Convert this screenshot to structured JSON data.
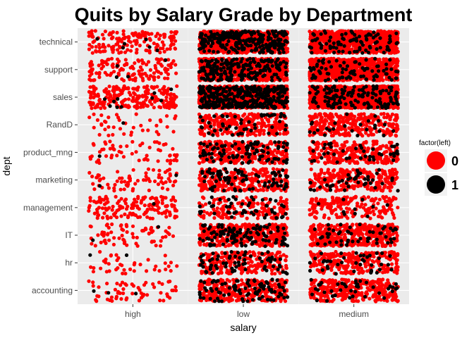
{
  "chart_data": {
    "type": "scatter",
    "subtype": "jitter",
    "title": "Quits by Salary Grade by Department",
    "xlabel": "salary",
    "ylabel": "dept",
    "x_categories": [
      "high",
      "low",
      "medium"
    ],
    "y_categories": [
      "accounting",
      "hr",
      "IT",
      "management",
      "marketing",
      "product_mng",
      "RandD",
      "sales",
      "support",
      "technical"
    ],
    "legend": {
      "title": "factor(left)",
      "position": "right",
      "entries": [
        {
          "label": "0",
          "color": "#ff0000"
        },
        {
          "label": "1",
          "color": "#000000"
        }
      ]
    },
    "series": [
      {
        "name": "0",
        "color": "#ff0000",
        "counts": {
          "high": {
            "accounting": 60,
            "hr": 40,
            "IT": 70,
            "management": 150,
            "marketing": 70,
            "product_mng": 60,
            "RandD": 40,
            "sales": 230,
            "support": 130,
            "technical": 150
          },
          "low": {
            "accounting": 320,
            "hr": 240,
            "IT": 400,
            "management": 160,
            "marketing": 280,
            "product_mng": 320,
            "RandD": 300,
            "sales": 1150,
            "support": 700,
            "technical": 850
          },
          "medium": {
            "accounting": 320,
            "hr": 260,
            "IT": 420,
            "management": 190,
            "marketing": 300,
            "product_mng": 300,
            "RandD": 300,
            "sales": 1350,
            "support": 800,
            "technical": 950
          }
        }
      },
      {
        "name": "1",
        "color": "#000000",
        "counts": {
          "high": {
            "accounting": 3,
            "hr": 2,
            "IT": 2,
            "management": 1,
            "marketing": 2,
            "product_mng": 1,
            "RandD": 1,
            "sales": 10,
            "support": 4,
            "technical": 6
          },
          "low": {
            "accounting": 90,
            "hr": 65,
            "IT": 110,
            "management": 50,
            "marketing": 80,
            "product_mng": 90,
            "RandD": 50,
            "sales": 330,
            "support": 200,
            "technical": 250
          },
          "medium": {
            "accounting": 40,
            "hr": 40,
            "IT": 50,
            "management": 10,
            "marketing": 40,
            "product_mng": 40,
            "RandD": 25,
            "sales": 140,
            "support": 80,
            "technical": 90
          }
        }
      }
    ],
    "grid": true
  }
}
